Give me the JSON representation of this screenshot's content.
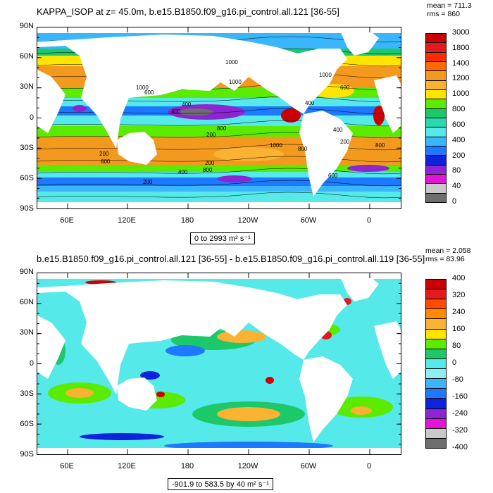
{
  "chart_data": [
    {
      "type": "heatmap",
      "title": "KAPPA_ISOP at z=  45.0m, b.e15.B1850.f09_g16.pi_control.all.121 [36-55]",
      "stats": {
        "mean": "mean = 711.3",
        "rms": "rms = 860"
      },
      "y_ticks": [
        "90N",
        "60N",
        "30N",
        "0",
        "30S",
        "60S",
        "90S"
      ],
      "x_ticks": [
        "60E",
        "120E",
        "180",
        "120W",
        "60W",
        "0"
      ],
      "range_label": "0 to 2993 m² s⁻¹",
      "colorbar_labels": [
        "3000",
        "1800",
        "1400",
        "1200",
        "1000",
        "800",
        "600",
        "400",
        "200",
        "80",
        "40",
        "0"
      ],
      "colors": [
        "#cc0000",
        "#e41a1c",
        "#ff2a00",
        "#ff6a00",
        "#f39a1e",
        "#f9b232",
        "#ffe400",
        "#5aeb00",
        "#1cc86a",
        "#2bd9b0",
        "#56e9e9",
        "#3ab6ff",
        "#1d79ff",
        "#0f23dd",
        "#8e24d4",
        "#e314d8",
        "#c9c9c9",
        "#6e6e6e"
      ],
      "contour_labels": [
        "1000",
        "1000",
        "1000",
        "600",
        "400",
        "400",
        "800",
        "200",
        "200",
        "400",
        "800",
        "1000",
        "200",
        "600",
        "200",
        "400",
        "400",
        "200",
        "600",
        "800",
        "600",
        "1000",
        "800"
      ]
    },
    {
      "type": "heatmap",
      "title": "b.e15.B1850.f09_g16.pi_control.all.121 [36-55] - b.e15.B1850.f09_g16.pi_control.all.119 [36-55]",
      "stats": {
        "mean": "mean = 2.058",
        "rms": "rms = 83.96"
      },
      "y_ticks": [
        "90N",
        "60N",
        "30N",
        "0",
        "30S",
        "60S",
        "90S"
      ],
      "x_ticks": [
        "60E",
        "120E",
        "180",
        "120W",
        "60W",
        "0"
      ],
      "range_label": "-901.9 to 583.5 by 40 m² s⁻¹",
      "colorbar_labels": [
        "400",
        "320",
        "240",
        "160",
        "80",
        "0",
        "-80",
        "-160",
        "-240",
        "-320",
        "-400"
      ],
      "colors": [
        "#cc0000",
        "#e41a1c",
        "#ff4a00",
        "#ff8a00",
        "#f9b232",
        "#ffe400",
        "#5aeb00",
        "#1cc86a",
        "#56e9e9",
        "#8feff0",
        "#3ab6ff",
        "#1d79ff",
        "#0f23dd",
        "#8e24d4",
        "#e314d8",
        "#c9c9c9",
        "#6e6e6e"
      ]
    }
  ]
}
